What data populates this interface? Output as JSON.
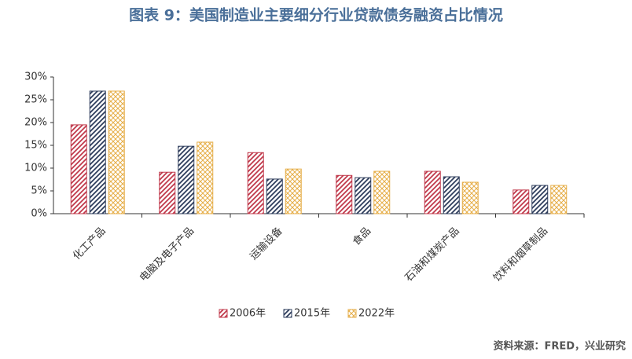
{
  "chart_data": {
    "type": "bar",
    "title": "图表 9：美国制造业主要细分行业贷款债务融资占比情况",
    "source": "资料来源：FRED，兴业研究",
    "categories": [
      "化工产品",
      "电脑及电子产品",
      "运输设备",
      "食品",
      "石油和煤炭产品",
      "饮料和烟草制品"
    ],
    "series": [
      {
        "name": "2006年",
        "color": "#c0394b",
        "pattern": "hatch",
        "values": [
          19.5,
          9.1,
          13.4,
          8.4,
          9.3,
          5.2
        ]
      },
      {
        "name": "2015年",
        "color": "#2e3d5c",
        "pattern": "hatch",
        "values": [
          26.9,
          14.8,
          7.6,
          7.9,
          8.1,
          6.2
        ]
      },
      {
        "name": "2022年",
        "color": "#e6ae48",
        "pattern": "cross",
        "values": [
          26.9,
          15.7,
          9.8,
          9.3,
          6.9,
          6.2
        ]
      }
    ],
    "ylim": [
      0,
      30
    ],
    "yticks": [
      {
        "value": 0,
        "label": "0%"
      },
      {
        "value": 5,
        "label": "5%"
      },
      {
        "value": 10,
        "label": "10%"
      },
      {
        "value": 15,
        "label": "15%"
      },
      {
        "value": 20,
        "label": "20%"
      },
      {
        "value": 25,
        "label": "25%"
      },
      {
        "value": 30,
        "label": "30%"
      }
    ],
    "grid": false,
    "legend": "bottom"
  }
}
